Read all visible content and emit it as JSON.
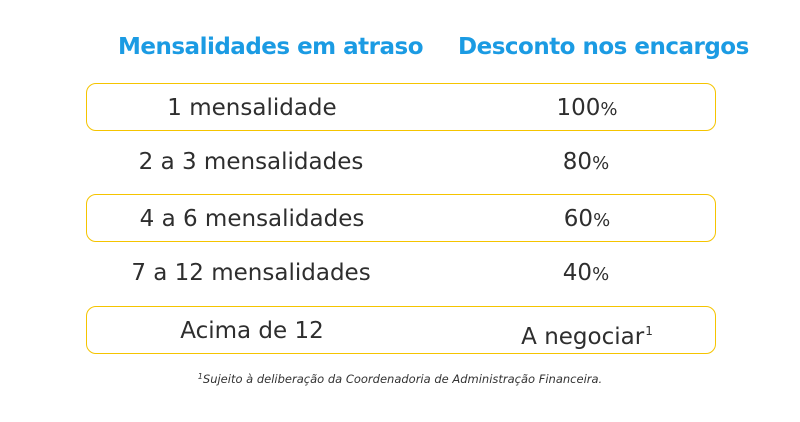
{
  "header": {
    "col1": "Mensalidades em atraso",
    "col2": "Desconto nos encargos"
  },
  "rows": [
    {
      "months": "1 mensalidade",
      "discount_num": "100",
      "discount_unit": "%",
      "boxed": true
    },
    {
      "months": "2 a 3 mensalidades",
      "discount_num": "80",
      "discount_unit": "%",
      "boxed": false
    },
    {
      "months": "4 a 6 mensalidades",
      "discount_num": "60",
      "discount_unit": "%",
      "boxed": true
    },
    {
      "months": "7 a 12 mensalidades",
      "discount_num": "40",
      "discount_unit": "%",
      "boxed": false
    },
    {
      "months": "Acima de 12",
      "discount_text": "A negociar",
      "discount_mark": "1",
      "boxed": true
    }
  ],
  "footnote": {
    "mark": "1",
    "text": "Sujeito à deliberação da Coordenadoria de Administração Financeira."
  },
  "colors": {
    "header": "#1b9be3",
    "row_border": "#f5c400",
    "text": "#2e2e2e"
  }
}
